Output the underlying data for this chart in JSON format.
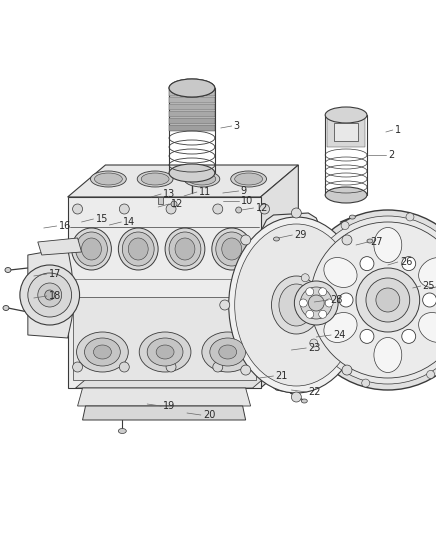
{
  "bg_color": "#ffffff",
  "line_color": "#3a3a3a",
  "label_color": "#2a2a2a",
  "fig_width": 4.38,
  "fig_height": 5.33,
  "dpi": 100,
  "parts_labels": [
    [
      "1",
      388,
      132,
      395,
      130
    ],
    [
      "2",
      370,
      155,
      388,
      155
    ],
    [
      "3",
      222,
      128,
      233,
      126
    ],
    [
      "9",
      224,
      193,
      240,
      191
    ],
    [
      "10",
      224,
      201,
      240,
      201
    ],
    [
      "11",
      185,
      196,
      198,
      192
    ],
    [
      "12",
      159,
      207,
      170,
      204
    ],
    [
      "12",
      243,
      210,
      255,
      208
    ],
    [
      "13",
      152,
      197,
      162,
      194
    ],
    [
      "14",
      110,
      225,
      122,
      222
    ],
    [
      "15",
      82,
      222,
      94,
      219
    ],
    [
      "16",
      44,
      228,
      57,
      226
    ],
    [
      "17",
      34,
      276,
      47,
      274
    ],
    [
      "18",
      34,
      298,
      47,
      296
    ],
    [
      "19",
      148,
      404,
      162,
      406
    ],
    [
      "20",
      188,
      413,
      202,
      415
    ],
    [
      "21",
      261,
      378,
      275,
      376
    ],
    [
      "22",
      293,
      390,
      308,
      392
    ],
    [
      "23",
      293,
      350,
      308,
      348
    ],
    [
      "24",
      318,
      337,
      333,
      335
    ],
    [
      "25",
      415,
      288,
      423,
      286
    ],
    [
      "26",
      390,
      265,
      400,
      262
    ],
    [
      "27",
      358,
      245,
      370,
      242
    ],
    [
      "28",
      316,
      302,
      330,
      300
    ],
    [
      "29",
      280,
      238,
      294,
      235
    ]
  ]
}
